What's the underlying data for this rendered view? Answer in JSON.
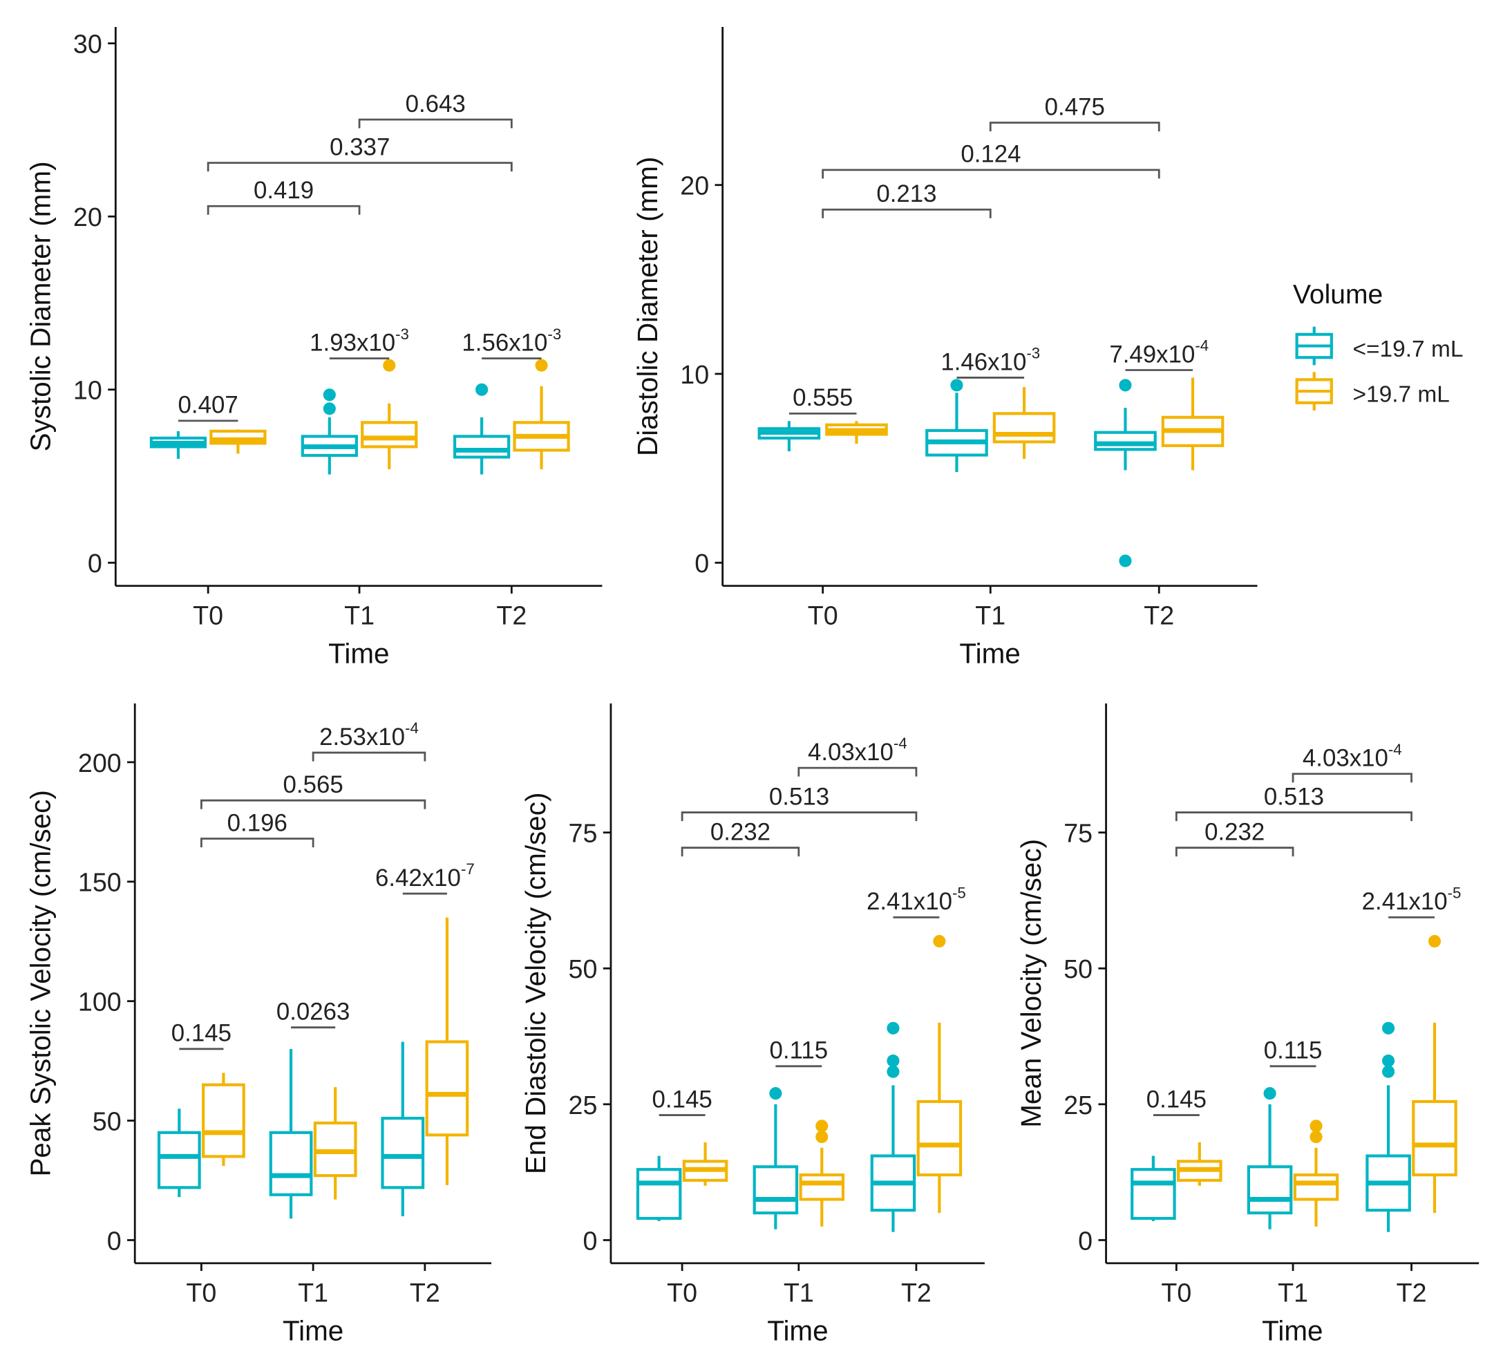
{
  "colors": {
    "group1": "#00b5c4",
    "group2": "#f3b400",
    "axis": "#111111",
    "bracket": "#555555"
  },
  "legend": {
    "title": "Volume",
    "entries": [
      {
        "label": "<=19.7 mL",
        "color": "#00b5c4"
      },
      {
        "label": ">19.7 mL",
        "color": "#f3b400"
      }
    ]
  },
  "chart_data": [
    {
      "type": "box",
      "title": "",
      "xlabel": "Time",
      "ylabel": "Systolic Diameter (mm)",
      "categories": [
        "T0",
        "T1",
        "T2"
      ],
      "ylim": [
        -1.3,
        31.5
      ],
      "yticks": [
        "0",
        "10",
        "20",
        "30"
      ],
      "series": [
        {
          "name": "<=19.7 mL",
          "boxes": [
            {
              "lo": 6.0,
              "q1": 6.7,
              "med": 6.9,
              "q3": 7.2,
              "hi": 7.6,
              "out": []
            },
            {
              "lo": 5.1,
              "q1": 6.2,
              "med": 6.7,
              "q3": 7.3,
              "hi": 8.4,
              "out": [
                8.9,
                9.7
              ]
            },
            {
              "lo": 5.1,
              "q1": 6.1,
              "med": 6.5,
              "q3": 7.3,
              "hi": 8.4,
              "out": [
                10.0
              ]
            }
          ]
        },
        {
          "name": ">19.7 mL",
          "boxes": [
            {
              "lo": 6.3,
              "q1": 6.9,
              "med": 7.1,
              "q3": 7.6,
              "hi": 7.7,
              "out": []
            },
            {
              "lo": 5.4,
              "q1": 6.7,
              "med": 7.2,
              "q3": 8.1,
              "hi": 9.2,
              "out": [
                11.4
              ]
            },
            {
              "lo": 5.4,
              "q1": 6.5,
              "med": 7.3,
              "q3": 8.1,
              "hi": 10.2,
              "out": [
                11.4
              ]
            }
          ]
        }
      ],
      "comparisons": [
        {
          "type": "within",
          "cat": 0,
          "y": 8.2,
          "base": "0.407",
          "exp": ""
        },
        {
          "type": "within",
          "cat": 1,
          "y": 11.8,
          "base": "1.93x10",
          "exp": "-3"
        },
        {
          "type": "within",
          "cat": 2,
          "y": 11.8,
          "base": "1.56x10",
          "exp": "-3"
        },
        {
          "type": "between",
          "from": 0,
          "to": 1,
          "y": 20.6,
          "base": "0.419",
          "exp": ""
        },
        {
          "type": "between",
          "from": 0,
          "to": 2,
          "y": 23.1,
          "base": "0.337",
          "exp": ""
        },
        {
          "type": "between",
          "from": 1,
          "to": 2,
          "y": 25.6,
          "base": "0.643",
          "exp": ""
        }
      ]
    },
    {
      "type": "box",
      "title": "",
      "xlabel": "Time",
      "ylabel": "Diastolic Diameter (mm)",
      "categories": [
        "T0",
        "T1",
        "T2"
      ],
      "ylim": [
        -1.2,
        28.7
      ],
      "yticks": [
        "0",
        "10",
        "20"
      ],
      "series": [
        {
          "name": "<=19.7 mL",
          "boxes": [
            {
              "lo": 5.9,
              "q1": 6.6,
              "med": 6.9,
              "q3": 7.1,
              "hi": 7.5,
              "out": []
            },
            {
              "lo": 4.8,
              "q1": 5.7,
              "med": 6.4,
              "q3": 7.0,
              "hi": 9.0,
              "out": [
                9.4
              ]
            },
            {
              "lo": 4.9,
              "q1": 6.0,
              "med": 6.3,
              "q3": 6.9,
              "hi": 8.2,
              "out": [
                9.4,
                0.1
              ]
            }
          ]
        },
        {
          "name": ">19.7 mL",
          "boxes": [
            {
              "lo": 6.3,
              "q1": 6.8,
              "med": 7.0,
              "q3": 7.3,
              "hi": 7.5,
              "out": []
            },
            {
              "lo": 5.5,
              "q1": 6.4,
              "med": 6.8,
              "q3": 7.9,
              "hi": 9.3,
              "out": []
            },
            {
              "lo": 4.9,
              "q1": 6.2,
              "med": 7.0,
              "q3": 7.7,
              "hi": 9.8,
              "out": []
            }
          ]
        }
      ],
      "comparisons": [
        {
          "type": "within",
          "cat": 0,
          "y": 7.9,
          "base": "0.555",
          "exp": ""
        },
        {
          "type": "within",
          "cat": 1,
          "y": 9.8,
          "base": "1.46x10",
          "exp": "-3"
        },
        {
          "type": "within",
          "cat": 2,
          "y": 10.2,
          "base": "7.49x10",
          "exp": "-4"
        },
        {
          "type": "between",
          "from": 0,
          "to": 1,
          "y": 18.7,
          "base": "0.213",
          "exp": ""
        },
        {
          "type": "between",
          "from": 0,
          "to": 2,
          "y": 20.8,
          "base": "0.124",
          "exp": ""
        },
        {
          "type": "between",
          "from": 1,
          "to": 2,
          "y": 23.3,
          "base": "0.475",
          "exp": ""
        }
      ]
    },
    {
      "type": "box",
      "title": "",
      "xlabel": "Time",
      "ylabel": "Peak Systolic Velocity (cm/sec)",
      "categories": [
        "T0",
        "T1",
        "T2"
      ],
      "ylim": [
        -10,
        225
      ],
      "yticks": [
        "0",
        "50",
        "100",
        "150",
        "200"
      ],
      "series": [
        {
          "name": "<=19.7 mL",
          "boxes": [
            {
              "lo": 18,
              "q1": 22,
              "med": 35,
              "q3": 45,
              "hi": 55,
              "out": []
            },
            {
              "lo": 9,
              "q1": 19,
              "med": 27,
              "q3": 45,
              "hi": 80,
              "out": []
            },
            {
              "lo": 10,
              "q1": 22,
              "med": 35,
              "q3": 51,
              "hi": 83,
              "out": []
            }
          ]
        },
        {
          "name": ">19.7 mL",
          "boxes": [
            {
              "lo": 31,
              "q1": 35,
              "med": 45,
              "q3": 65,
              "hi": 70,
              "out": []
            },
            {
              "lo": 17,
              "q1": 27,
              "med": 37,
              "q3": 49,
              "hi": 64,
              "out": []
            },
            {
              "lo": 23,
              "q1": 44,
              "med": 61,
              "q3": 83,
              "hi": 135,
              "out": []
            }
          ]
        }
      ],
      "comparisons": [
        {
          "type": "within",
          "cat": 0,
          "y": 80,
          "base": "0.145",
          "exp": ""
        },
        {
          "type": "within",
          "cat": 1,
          "y": 89,
          "base": "0.0263",
          "exp": ""
        },
        {
          "type": "within",
          "cat": 2,
          "y": 145,
          "base": "6.42x10",
          "exp": "-7"
        },
        {
          "type": "between",
          "from": 0,
          "to": 1,
          "y": 168,
          "base": "0.196",
          "exp": ""
        },
        {
          "type": "between",
          "from": 0,
          "to": 2,
          "y": 184,
          "base": "0.565",
          "exp": ""
        },
        {
          "type": "between",
          "from": 1,
          "to": 2,
          "y": 204,
          "base": "2.53x10",
          "exp": "-4"
        }
      ]
    },
    {
      "type": "box",
      "title": "",
      "xlabel": "Time",
      "ylabel": "End Diastolic Velocity (cm/sec)",
      "categories": [
        "T0",
        "T1",
        "T2"
      ],
      "ylim": [
        -4.3,
        98.8
      ],
      "yticks": [
        "0",
        "25",
        "50",
        "75"
      ],
      "series": [
        {
          "name": "<=19.7 mL",
          "boxes": [
            {
              "lo": 3.5,
              "q1": 4,
              "med": 10.5,
              "q3": 13,
              "hi": 15.5,
              "out": []
            },
            {
              "lo": 2,
              "q1": 5,
              "med": 7.5,
              "q3": 13.5,
              "hi": 25,
              "out": [
                27
              ]
            },
            {
              "lo": 1.5,
              "q1": 5.5,
              "med": 10.5,
              "q3": 15.5,
              "hi": 28.5,
              "out": [
                31,
                33,
                39
              ]
            }
          ]
        },
        {
          "name": ">19.7 mL",
          "boxes": [
            {
              "lo": 10,
              "q1": 11,
              "med": 13,
              "q3": 14.5,
              "hi": 18,
              "out": []
            },
            {
              "lo": 2.5,
              "q1": 7.5,
              "med": 10.5,
              "q3": 12,
              "hi": 17,
              "out": [
                19,
                21
              ]
            },
            {
              "lo": 5,
              "q1": 12,
              "med": 17.5,
              "q3": 25.5,
              "hi": 40,
              "out": [
                55
              ]
            }
          ]
        }
      ],
      "comparisons": [
        {
          "type": "within",
          "cat": 0,
          "y": 23,
          "base": "0.145",
          "exp": ""
        },
        {
          "type": "within",
          "cat": 1,
          "y": 32,
          "base": "0.115",
          "exp": ""
        },
        {
          "type": "within",
          "cat": 2,
          "y": 59.4,
          "base": "2.41x10",
          "exp": "-5"
        },
        {
          "type": "between",
          "from": 0,
          "to": 1,
          "y": 72.2,
          "base": "0.232",
          "exp": ""
        },
        {
          "type": "between",
          "from": 0,
          "to": 2,
          "y": 78.7,
          "base": "0.513",
          "exp": ""
        },
        {
          "type": "between",
          "from": 1,
          "to": 2,
          "y": 86.9,
          "base": "4.03x10",
          "exp": "-4"
        }
      ]
    },
    {
      "type": "box",
      "title": "",
      "xlabel": "Time",
      "ylabel": "Mean Velocity (cm/sec)",
      "categories": [
        "T0",
        "T1",
        "T2"
      ],
      "ylim": [
        -4.3,
        98.8
      ],
      "yticks": [
        "0",
        "25",
        "50",
        "75"
      ],
      "series": [
        {
          "name": "<=19.7 mL",
          "boxes": [
            {
              "lo": 3.5,
              "q1": 4,
              "med": 10.5,
              "q3": 13,
              "hi": 15.5,
              "out": []
            },
            {
              "lo": 2,
              "q1": 5,
              "med": 7.5,
              "q3": 13.5,
              "hi": 25,
              "out": [
                27
              ]
            },
            {
              "lo": 1.5,
              "q1": 5.5,
              "med": 10.5,
              "q3": 15.5,
              "hi": 28.5,
              "out": [
                31,
                33,
                39
              ]
            }
          ]
        },
        {
          "name": ">19.7 mL",
          "boxes": [
            {
              "lo": 10,
              "q1": 11,
              "med": 13,
              "q3": 14.5,
              "hi": 18,
              "out": []
            },
            {
              "lo": 2.5,
              "q1": 7.5,
              "med": 10.5,
              "q3": 12,
              "hi": 17,
              "out": [
                19,
                21
              ]
            },
            {
              "lo": 5,
              "q1": 12,
              "med": 17.5,
              "q3": 25.5,
              "hi": 40,
              "out": [
                55
              ]
            }
          ]
        }
      ],
      "comparisons": [
        {
          "type": "within",
          "cat": 0,
          "y": 23,
          "base": "0.145",
          "exp": ""
        },
        {
          "type": "within",
          "cat": 1,
          "y": 32,
          "base": "0.115",
          "exp": ""
        },
        {
          "type": "within",
          "cat": 2,
          "y": 59.4,
          "base": "2.41x10",
          "exp": "-5"
        },
        {
          "type": "between",
          "from": 0,
          "to": 1,
          "y": 72.2,
          "base": "0.232",
          "exp": ""
        },
        {
          "type": "between",
          "from": 0,
          "to": 2,
          "y": 78.7,
          "base": "0.513",
          "exp": ""
        },
        {
          "type": "between",
          "from": 1,
          "to": 2,
          "y": 85.8,
          "base": "4.03x10",
          "exp": "-4"
        }
      ]
    }
  ]
}
